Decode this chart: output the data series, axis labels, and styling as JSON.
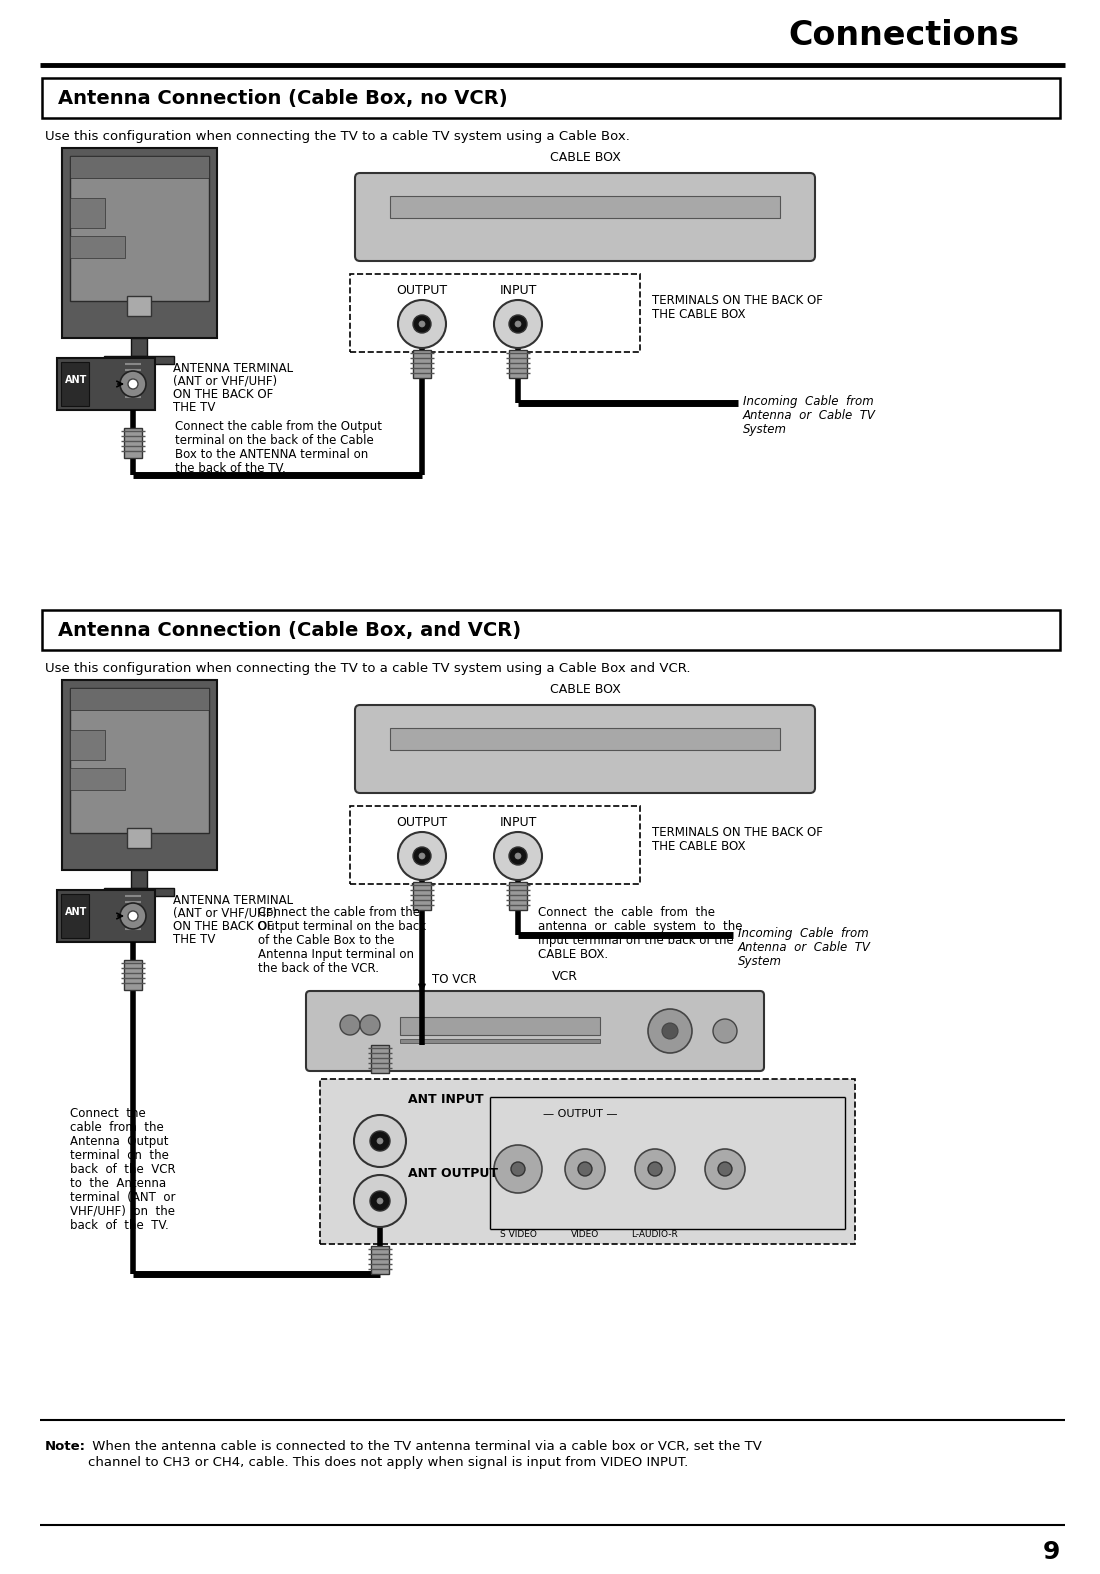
{
  "title": "Connections",
  "s1_title": "Antenna Connection (Cable Box, no VCR)",
  "s1_desc": "Use this configuration when connecting the TV to a cable TV system using a Cable Box.",
  "s2_title": "Antenna Connection (Cable Box, and VCR)",
  "s2_desc": "Use this configuration when connecting the TV to a cable TV system using a Cable Box and VCR.",
  "note_bold": "Note:",
  "note_line1": " When the antenna cable is connected to the TV antenna terminal via a cable box or VCR, set the TV",
  "note_line2": "channel to CH3 or CH4, cable. This does not apply when signal is input from VIDEO INPUT.",
  "page_number": "9"
}
